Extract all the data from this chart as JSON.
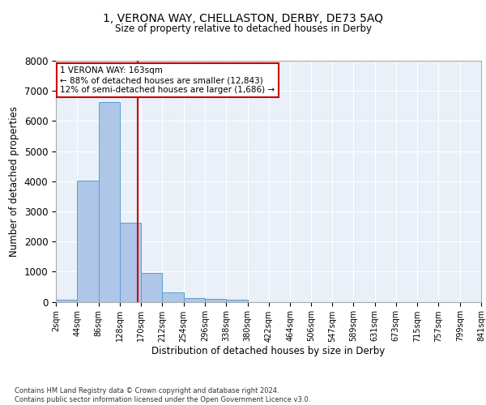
{
  "title": "1, VERONA WAY, CHELLASTON, DERBY, DE73 5AQ",
  "subtitle": "Size of property relative to detached houses in Derby",
  "xlabel": "Distribution of detached houses by size in Derby",
  "ylabel": "Number of detached properties",
  "bar_color": "#aec6e8",
  "bar_edge_color": "#5a9fd4",
  "background_color": "#eaf0f8",
  "grid_color": "#ffffff",
  "vline_color": "#cc0000",
  "vline_x": 163,
  "annotation_text": "1 VERONA WAY: 163sqm\n← 88% of detached houses are smaller (12,843)\n12% of semi-detached houses are larger (1,686) →",
  "annotation_box_color": "#ffffff",
  "annotation_box_edge": "#cc0000",
  "footer_text": "Contains HM Land Registry data © Crown copyright and database right 2024.\nContains public sector information licensed under the Open Government Licence v3.0.",
  "bin_edges": [
    2,
    44,
    86,
    128,
    170,
    212,
    254,
    296,
    338,
    380,
    422,
    464,
    506,
    547,
    589,
    631,
    673,
    715,
    757,
    799,
    841
  ],
  "bin_values": [
    70,
    4020,
    6620,
    2620,
    960,
    300,
    120,
    85,
    70,
    0,
    0,
    0,
    0,
    0,
    0,
    0,
    0,
    0,
    0,
    0
  ],
  "ylim": [
    0,
    8000
  ],
  "yticks": [
    0,
    1000,
    2000,
    3000,
    4000,
    5000,
    6000,
    7000,
    8000
  ],
  "tick_labels": [
    "2sqm",
    "44sqm",
    "86sqm",
    "128sqm",
    "170sqm",
    "212sqm",
    "254sqm",
    "296sqm",
    "338sqm",
    "380sqm",
    "422sqm",
    "464sqm",
    "506sqm",
    "547sqm",
    "589sqm",
    "631sqm",
    "673sqm",
    "715sqm",
    "757sqm",
    "799sqm",
    "841sqm"
  ]
}
